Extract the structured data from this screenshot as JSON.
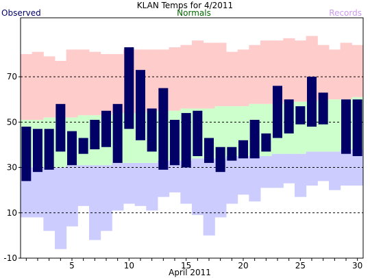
{
  "chart_data": {
    "type": "bar",
    "title": "KLAN Temps for 4/2011",
    "xlabel": "April 2011",
    "ylabel": "",
    "xlim": [
      0.5,
      30.5
    ],
    "ylim": [
      -10,
      96
    ],
    "yticks": [
      -10,
      10,
      30,
      50,
      70
    ],
    "xticks": [
      5,
      10,
      15,
      20,
      25,
      30
    ],
    "grid": "horizontal-dashed",
    "legend": [
      {
        "name": "Observed",
        "color": "#000066",
        "placement": "top-left"
      },
      {
        "name": "Normals",
        "color": "#006600",
        "placement": "top-center"
      },
      {
        "name": "Records",
        "color": "#cc99ee",
        "placement": "top-right"
      }
    ],
    "days": [
      1,
      2,
      3,
      4,
      5,
      6,
      7,
      8,
      9,
      10,
      11,
      12,
      13,
      14,
      15,
      16,
      17,
      18,
      19,
      20,
      21,
      22,
      23,
      24,
      25,
      26,
      27,
      28,
      29,
      30
    ],
    "series": [
      {
        "name": "Records",
        "kind": "range",
        "high_color": "#ffcccc",
        "low_color": "#ccccff",
        "high": [
          80,
          81,
          79,
          77,
          82,
          82,
          81,
          80,
          80,
          82,
          82,
          82,
          82,
          83,
          84,
          86,
          85,
          85,
          81,
          82,
          84,
          86,
          86,
          87,
          86,
          88,
          84,
          82,
          85,
          84
        ],
        "low": [
          8,
          8,
          2,
          -6,
          4,
          13,
          -2,
          2,
          11,
          14,
          13,
          11,
          17,
          19,
          14,
          9,
          0,
          8,
          14,
          18,
          15,
          21,
          21,
          23,
          17,
          22,
          24,
          20,
          22,
          22
        ]
      },
      {
        "name": "Normals",
        "kind": "range",
        "high_color": "#ccffcc",
        "low_color": "#ccccff",
        "high": [
          51,
          51,
          52,
          52,
          52,
          53,
          53,
          53,
          54,
          54,
          54,
          55,
          55,
          55,
          56,
          56,
          56,
          57,
          57,
          57,
          58,
          58,
          58,
          59,
          59,
          59,
          60,
          60,
          60,
          61
        ],
        "low": [
          30,
          30,
          30,
          30,
          31,
          31,
          31,
          31,
          32,
          32,
          32,
          32,
          33,
          33,
          33,
          34,
          34,
          34,
          35,
          35,
          35,
          35,
          36,
          36,
          36,
          37,
          37,
          37,
          38,
          38
        ]
      },
      {
        "name": "Observed",
        "kind": "range",
        "color": "#000066",
        "high": [
          48,
          47,
          47,
          58,
          46,
          43,
          51,
          55,
          58,
          83,
          73,
          56,
          65,
          51,
          54,
          55,
          43,
          39,
          39,
          42,
          51,
          45,
          66,
          60,
          57,
          70,
          63,
          40,
          60,
          60
        ],
        "low": [
          24,
          28,
          29,
          37,
          31,
          36,
          38,
          39,
          32,
          47,
          42,
          37,
          29,
          31,
          30,
          35,
          32,
          28,
          33,
          34,
          34,
          37,
          43,
          45,
          49,
          48,
          49,
          40,
          36,
          35
        ]
      }
    ]
  }
}
